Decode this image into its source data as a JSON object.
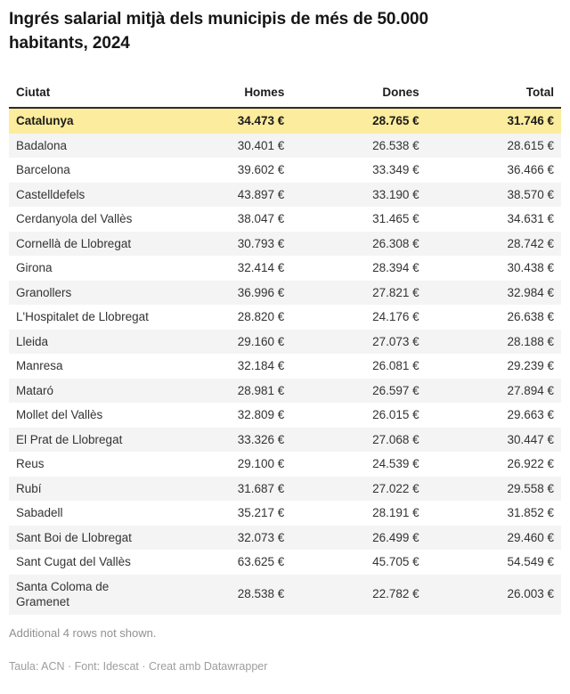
{
  "title": "Ingrés salarial mitjà dels municipis de més de 50.000 habitants, 2024",
  "chart_data": {
    "type": "table",
    "title": "Ingrés salarial mitjà dels municipis de més de 50.000 habitants, 2024",
    "columns": [
      "Ciutat",
      "Homes",
      "Dones",
      "Total"
    ],
    "unit": "€",
    "value_suffix": " €",
    "number_format": "thousands separated by dot",
    "rows": [
      {
        "ciutat": "Catalunya",
        "homes": 34473,
        "dones": 28765,
        "total": 31746,
        "highlight": true
      },
      {
        "ciutat": "Badalona",
        "homes": 30401,
        "dones": 26538,
        "total": 28615
      },
      {
        "ciutat": "Barcelona",
        "homes": 39602,
        "dones": 33349,
        "total": 36466
      },
      {
        "ciutat": "Castelldefels",
        "homes": 43897,
        "dones": 33190,
        "total": 38570
      },
      {
        "ciutat": "Cerdanyola del Vallès",
        "homes": 38047,
        "dones": 31465,
        "total": 34631
      },
      {
        "ciutat": "Cornellà de Llobregat",
        "homes": 30793,
        "dones": 26308,
        "total": 28742
      },
      {
        "ciutat": "Girona",
        "homes": 32414,
        "dones": 28394,
        "total": 30438
      },
      {
        "ciutat": "Granollers",
        "homes": 36996,
        "dones": 27821,
        "total": 32984
      },
      {
        "ciutat": "L'Hospitalet de Llobregat",
        "homes": 28820,
        "dones": 24176,
        "total": 26638
      },
      {
        "ciutat": "Lleida",
        "homes": 29160,
        "dones": 27073,
        "total": 28188
      },
      {
        "ciutat": "Manresa",
        "homes": 32184,
        "dones": 26081,
        "total": 29239
      },
      {
        "ciutat": "Mataró",
        "homes": 28981,
        "dones": 26597,
        "total": 27894
      },
      {
        "ciutat": "Mollet del Vallès",
        "homes": 32809,
        "dones": 26015,
        "total": 29663
      },
      {
        "ciutat": "El Prat de Llobregat",
        "homes": 33326,
        "dones": 27068,
        "total": 30447
      },
      {
        "ciutat": "Reus",
        "homes": 29100,
        "dones": 24539,
        "total": 26922
      },
      {
        "ciutat": "Rubí",
        "homes": 31687,
        "dones": 27022,
        "total": 29558
      },
      {
        "ciutat": "Sabadell",
        "homes": 35217,
        "dones": 28191,
        "total": 31852
      },
      {
        "ciutat": "Sant Boi de Llobregat",
        "homes": 32073,
        "dones": 26499,
        "total": 29460
      },
      {
        "ciutat": "Sant Cugat del Vallès",
        "homes": 63625,
        "dones": 45705,
        "total": 54549
      },
      {
        "ciutat": "Santa Coloma de Gramenet",
        "homes": 28538,
        "dones": 22782,
        "total": 26003
      }
    ],
    "layout_hints": {
      "highlight_row": "Catalunya",
      "striping": "alternating from second row",
      "numeric_alignment": "right"
    }
  },
  "notes": {
    "additional_rows": "Additional 4 rows not shown."
  },
  "footer": {
    "attribution": "Taula: ACN · Font: Idescat · Creat amb Datawrapper"
  },
  "colors": {
    "highlight_row": "#fcec9d",
    "stripe_row": "#f4f4f5",
    "header_border": "#2b2b2b",
    "text": "#333333",
    "title_text": "#161616",
    "note_text": "#919191",
    "attribution_text": "#9d9d9d"
  }
}
